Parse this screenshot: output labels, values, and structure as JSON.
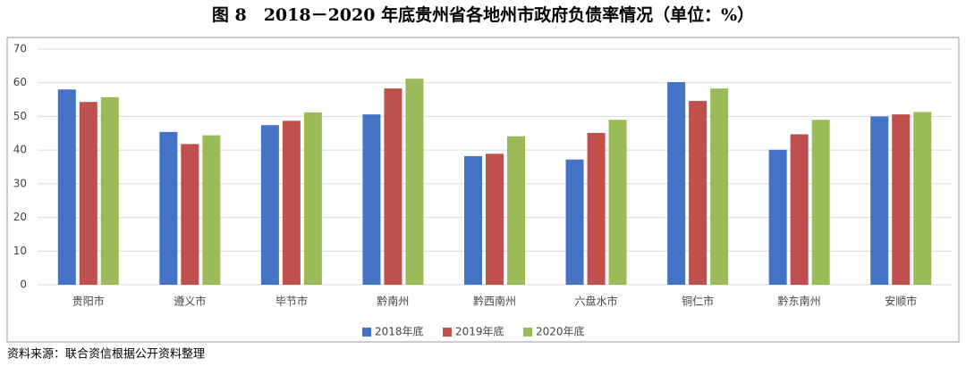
{
  "chart_data": {
    "type": "bar",
    "title": "图 8　2018－2020 年底贵州省各地州市政府负债率情况（单位：%）",
    "categories": [
      "贵阳市",
      "遵义市",
      "毕节市",
      "黔南州",
      "黔西南州",
      "六盘水市",
      "铜仁市",
      "黔东南州",
      "安顺市"
    ],
    "series": [
      {
        "name": "2018年底",
        "color": "#4472c4",
        "values": [
          58,
          45.4,
          47.4,
          50.6,
          38.2,
          37.2,
          60.2,
          40.1,
          50
        ]
      },
      {
        "name": "2019年底",
        "color": "#c0504d",
        "values": [
          54.3,
          41.8,
          48.7,
          58.3,
          38.9,
          45.1,
          54.6,
          44.7,
          50.6
        ]
      },
      {
        "name": "2020年底",
        "color": "#9bbb59",
        "values": [
          55.7,
          44.4,
          51.2,
          61.2,
          44.1,
          49,
          58.3,
          49,
          51.3
        ]
      }
    ],
    "ylim": [
      0,
      70
    ],
    "yticks": [
      0,
      10,
      20,
      30,
      40,
      50,
      60,
      70
    ],
    "grid": true,
    "legend": "bottom"
  },
  "source": "资料来源：联合资信根据公开资料整理"
}
